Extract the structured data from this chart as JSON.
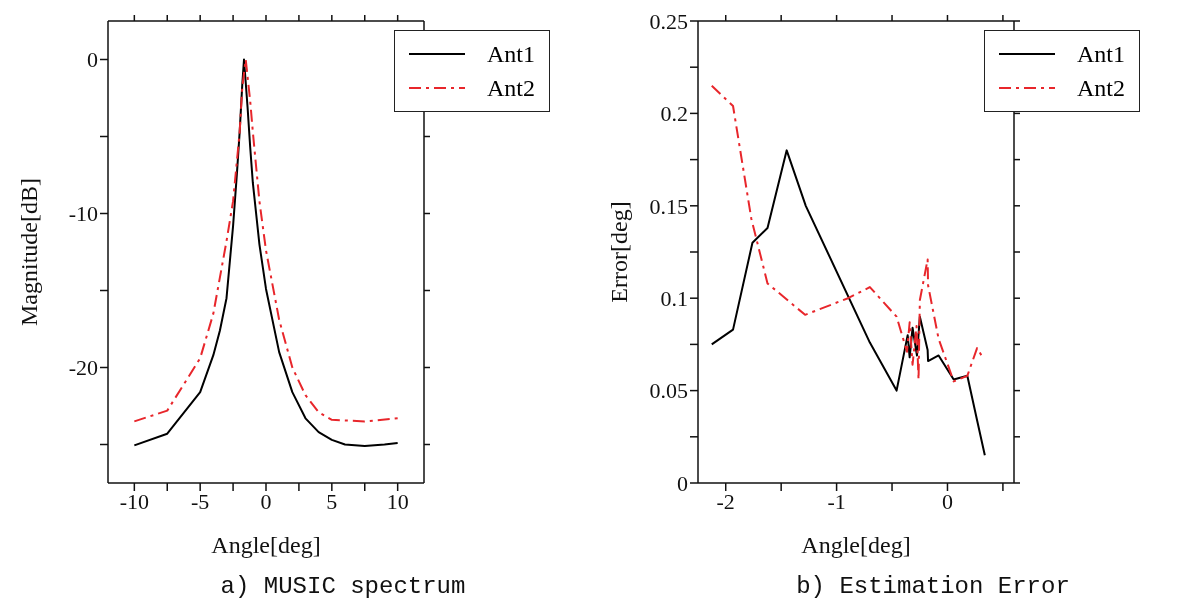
{
  "chart_data": [
    {
      "type": "line",
      "xlabel": "Angle[deg]",
      "ylabel": "Magnitude[dB]",
      "xlim": [
        -12,
        12
      ],
      "ylim": [
        -27.5,
        2.5
      ],
      "xticks": [
        -10,
        {
          "value": -7.5,
          "label": null
        },
        -5,
        {
          "value": -2.5,
          "label": null
        },
        0,
        {
          "value": 2.5,
          "label": null
        },
        5,
        {
          "value": 7.5,
          "label": null
        },
        10
      ],
      "yticks": [
        {
          "value": -25,
          "label": null
        },
        -20,
        {
          "value": -15,
          "label": null
        },
        -10,
        {
          "value": -5,
          "label": null
        },
        0
      ],
      "legend": "top right",
      "marker": "none",
      "annotations": [
        "a) MUSIC spectrum"
      ],
      "series": [
        {
          "name": "Ant1",
          "color": "#000000",
          "line_style": "solid",
          "x": [
            -10,
            -7.5,
            -5,
            -4,
            -3.5,
            -3,
            -2.5,
            -2.2,
            -2,
            -1.8,
            -1.67,
            -1.4,
            -1.2,
            -1,
            -0.5,
            0,
            1,
            2,
            3,
            4,
            5,
            6,
            7.5,
            9,
            10
          ],
          "values": [
            -25.06,
            -24.3,
            -21.6,
            -19.2,
            -17.6,
            -15.5,
            -10.8,
            -7.3,
            -4.7,
            -1.6,
            0,
            -3.1,
            -5.7,
            -8,
            -12,
            -14.9,
            -19,
            -21.6,
            -23.3,
            -24.2,
            -24.7,
            -25,
            -25.1,
            -25,
            -24.9
          ]
        },
        {
          "name": "Ant2",
          "color": "#e8262b",
          "line_style": "dashed",
          "x": [
            -10,
            -7.5,
            -5,
            -4,
            -3,
            -2.5,
            -2,
            -1.8,
            -1.54,
            -1.2,
            -1,
            -0.5,
            0,
            1,
            2,
            3,
            4,
            5,
            7.5,
            10
          ],
          "values": [
            -23.5,
            -22.8,
            -19.4,
            -16.5,
            -11.8,
            -9.2,
            -4.7,
            -1.8,
            0,
            -2.7,
            -4.7,
            -9.2,
            -12.4,
            -16.9,
            -20,
            -21.8,
            -22.9,
            -23.4,
            -23.5,
            -23.3
          ]
        }
      ]
    },
    {
      "type": "line",
      "xlabel": "Angle[deg]",
      "ylabel": "Error[deg]",
      "xlim": [
        -2.25,
        0.6
      ],
      "ylim": [
        0,
        0.25
      ],
      "xticks": [
        -2,
        {
          "value": -1.5,
          "label": null
        },
        -1,
        {
          "value": -0.5,
          "label": null
        },
        0,
        {
          "value": 0.5,
          "label": null
        }
      ],
      "yticks": [
        0,
        {
          "value": 0.025,
          "label": null
        },
        0.05,
        {
          "value": 0.075,
          "label": null
        },
        0.1,
        {
          "value": 0.125,
          "label": null
        },
        0.15,
        {
          "value": 0.175,
          "label": null
        },
        0.2,
        {
          "value": 0.225,
          "label": null
        },
        0.25
      ],
      "legend": "top right",
      "marker": "none",
      "annotations": [
        "b) Estimation Error"
      ],
      "series": [
        {
          "name": "Ant1",
          "color": "#000000",
          "line_style": "solid",
          "x": [
            -2.126,
            -1.934,
            -1.759,
            -1.623,
            -1.45,
            -1.278,
            -0.7,
            -0.459,
            -0.359,
            -0.341,
            -0.315,
            -0.275,
            -0.249,
            -0.179,
            -0.175,
            -0.08,
            0.056,
            0.179,
            0.267,
            0.337
          ],
          "values": [
            0.075,
            0.083,
            0.13,
            0.138,
            0.18,
            0.15,
            0.076,
            0.05,
            0.08,
            0.068,
            0.084,
            0.069,
            0.09,
            0.072,
            0.066,
            0.069,
            0.056,
            0.058,
            0.034,
            0.015
          ]
        },
        {
          "name": "Ant2",
          "color": "#e8262b",
          "line_style": "dashed",
          "x": [
            -2.126,
            -1.934,
            -1.769,
            -1.623,
            -1.284,
            -0.897,
            -0.7,
            -0.459,
            -0.365,
            -0.341,
            -0.315,
            -0.279,
            -0.261,
            -0.249,
            -0.179,
            -0.175,
            -0.08,
            0.056,
            0.179,
            0.267,
            0.317
          ],
          "values": [
            0.215,
            0.204,
            0.143,
            0.108,
            0.091,
            0.1,
            0.106,
            0.09,
            0.071,
            0.087,
            0.064,
            0.085,
            0.056,
            0.099,
            0.121,
            0.107,
            0.078,
            0.055,
            0.058,
            0.073,
            0.068
          ]
        }
      ]
    }
  ]
}
